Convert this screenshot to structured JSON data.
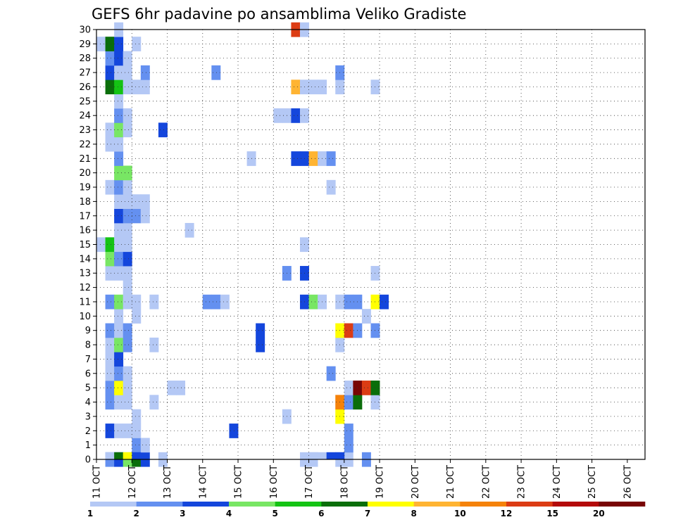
{
  "chart_data": {
    "type": "heatmap",
    "title": "GEFS 6hr padavine po ansamblima Veliko Gradiste",
    "xlabel": "",
    "ylabel": "",
    "x_ticks": [
      "11 OCT",
      "12 OCT",
      "13 OCT",
      "14 OCT",
      "15 OCT",
      "16 OCT",
      "17 OCT",
      "18 OCT",
      "19 OCT",
      "20 OCT",
      "21 OCT",
      "22 OCT",
      "23 OCT",
      "24 OCT",
      "25 OCT",
      "26 OCT"
    ],
    "y_ticks": [
      "0",
      "1",
      "2",
      "3",
      "4",
      "5",
      "6",
      "7",
      "8",
      "9",
      "10",
      "11",
      "12",
      "13",
      "14",
      "15",
      "16",
      "17",
      "18",
      "19",
      "20",
      "21",
      "22",
      "23",
      "24",
      "25",
      "26",
      "27",
      "28",
      "29",
      "30"
    ],
    "xlim": [
      0,
      62
    ],
    "ylim": [
      0,
      30
    ],
    "grid": true,
    "colorbar": {
      "levels": [
        "1",
        "2",
        "3",
        "4",
        "5",
        "6",
        "7",
        "8",
        "10",
        "12",
        "15",
        "20"
      ],
      "colors": [
        "#b4c8f5",
        "#6490f0",
        "#1446dc",
        "#78e664",
        "#14c314",
        "#0a6e0a",
        "#ffff00",
        "#ffb432",
        "#f5820a",
        "#dc3c14",
        "#b40a0a",
        "#780505"
      ]
    },
    "cells": [
      [
        0,
        1,
        2
      ],
      [
        0,
        2,
        3
      ],
      [
        0,
        3,
        4
      ],
      [
        0,
        4,
        6
      ],
      [
        0,
        5,
        3
      ],
      [
        0,
        7,
        1
      ],
      [
        0,
        23,
        1
      ],
      [
        0,
        24,
        1
      ],
      [
        0,
        27,
        1
      ],
      [
        0,
        28,
        1
      ],
      [
        0,
        30,
        2
      ],
      [
        1,
        4,
        2
      ],
      [
        1,
        5,
        1
      ],
      [
        1,
        28,
        2
      ],
      [
        2,
        1,
        3
      ],
      [
        2,
        2,
        1
      ],
      [
        2,
        3,
        1
      ],
      [
        2,
        4,
        1
      ],
      [
        2,
        15,
        3
      ],
      [
        2,
        28,
        2
      ],
      [
        3,
        4,
        1
      ],
      [
        3,
        21,
        1
      ],
      [
        3,
        27,
        7
      ],
      [
        4,
        1,
        2
      ],
      [
        4,
        2,
        1
      ],
      [
        4,
        3,
        1
      ],
      [
        4,
        6,
        1
      ],
      [
        4,
        27,
        9
      ],
      [
        4,
        28,
        2
      ],
      [
        4,
        29,
        6
      ],
      [
        4,
        31,
        1
      ],
      [
        5,
        1,
        2
      ],
      [
        5,
        2,
        7
      ],
      [
        5,
        3,
        1
      ],
      [
        5,
        8,
        1
      ],
      [
        5,
        9,
        1
      ],
      [
        5,
        28,
        1
      ],
      [
        5,
        29,
        12
      ],
      [
        5,
        30,
        10
      ],
      [
        5,
        31,
        6
      ],
      [
        6,
        1,
        1
      ],
      [
        6,
        2,
        2
      ],
      [
        6,
        3,
        1
      ],
      [
        6,
        26,
        2
      ],
      [
        7,
        1,
        1
      ],
      [
        7,
        2,
        3
      ],
      [
        8,
        1,
        1
      ],
      [
        8,
        2,
        4
      ],
      [
        8,
        3,
        2
      ],
      [
        8,
        6,
        1
      ],
      [
        8,
        18,
        3
      ],
      [
        8,
        27,
        1
      ],
      [
        9,
        1,
        2
      ],
      [
        9,
        2,
        1
      ],
      [
        9,
        3,
        2
      ],
      [
        9,
        18,
        3
      ],
      [
        9,
        27,
        7
      ],
      [
        9,
        28,
        10
      ],
      [
        9,
        29,
        2
      ],
      [
        9,
        31,
        2
      ],
      [
        10,
        2,
        1
      ],
      [
        10,
        4,
        1
      ],
      [
        10,
        30,
        1
      ],
      [
        11,
        1,
        2
      ],
      [
        11,
        2,
        4
      ],
      [
        11,
        3,
        1
      ],
      [
        11,
        4,
        1
      ],
      [
        11,
        6,
        1
      ],
      [
        11,
        12,
        2
      ],
      [
        11,
        13,
        2
      ],
      [
        11,
        14,
        1
      ],
      [
        11,
        23,
        3
      ],
      [
        11,
        24,
        4
      ],
      [
        11,
        25,
        1
      ],
      [
        11,
        27,
        1
      ],
      [
        11,
        28,
        2
      ],
      [
        11,
        29,
        2
      ],
      [
        11,
        31,
        7
      ],
      [
        11,
        32,
        3
      ],
      [
        12,
        3,
        1
      ],
      [
        13,
        1,
        1
      ],
      [
        13,
        2,
        1
      ],
      [
        13,
        3,
        1
      ],
      [
        13,
        21,
        2
      ],
      [
        13,
        23,
        3
      ],
      [
        13,
        31,
        1
      ],
      [
        14,
        1,
        4
      ],
      [
        14,
        2,
        2
      ],
      [
        14,
        3,
        3
      ],
      [
        15,
        0,
        1
      ],
      [
        15,
        1,
        5
      ],
      [
        15,
        2,
        1
      ],
      [
        15,
        3,
        1
      ],
      [
        15,
        23,
        1
      ],
      [
        16,
        2,
        1
      ],
      [
        16,
        3,
        1
      ],
      [
        16,
        10,
        1
      ],
      [
        17,
        2,
        3
      ],
      [
        17,
        3,
        2
      ],
      [
        17,
        4,
        2
      ],
      [
        17,
        5,
        1
      ],
      [
        18,
        2,
        1
      ],
      [
        18,
        3,
        1
      ],
      [
        18,
        4,
        1
      ],
      [
        18,
        5,
        1
      ],
      [
        19,
        1,
        1
      ],
      [
        19,
        2,
        2
      ],
      [
        19,
        3,
        1
      ],
      [
        19,
        26,
        1
      ],
      [
        20,
        2,
        4
      ],
      [
        20,
        3,
        4
      ],
      [
        21,
        2,
        2
      ],
      [
        21,
        17,
        1
      ],
      [
        21,
        22,
        3
      ],
      [
        21,
        23,
        3
      ],
      [
        21,
        24,
        8
      ],
      [
        21,
        25,
        1
      ],
      [
        21,
        26,
        2
      ],
      [
        22,
        1,
        1
      ],
      [
        22,
        2,
        1
      ],
      [
        23,
        1,
        1
      ],
      [
        23,
        2,
        4
      ],
      [
        23,
        3,
        1
      ],
      [
        23,
        7,
        3
      ],
      [
        24,
        2,
        2
      ],
      [
        24,
        3,
        1
      ],
      [
        24,
        20,
        1
      ],
      [
        24,
        21,
        1
      ],
      [
        24,
        22,
        3
      ],
      [
        24,
        23,
        1
      ],
      [
        25,
        2,
        1
      ],
      [
        26,
        1,
        6
      ],
      [
        26,
        2,
        5
      ],
      [
        26,
        3,
        1
      ],
      [
        26,
        4,
        1
      ],
      [
        26,
        5,
        1
      ],
      [
        26,
        22,
        8
      ],
      [
        26,
        23,
        1
      ],
      [
        26,
        24,
        1
      ],
      [
        26,
        25,
        1
      ],
      [
        26,
        27,
        1
      ],
      [
        26,
        31,
        1
      ],
      [
        27,
        1,
        3
      ],
      [
        27,
        2,
        1
      ],
      [
        27,
        3,
        1
      ],
      [
        27,
        5,
        2
      ],
      [
        27,
        13,
        2
      ],
      [
        27,
        27,
        2
      ],
      [
        28,
        1,
        2
      ],
      [
        28,
        2,
        3
      ],
      [
        28,
        3,
        1
      ],
      [
        29,
        0,
        1
      ],
      [
        29,
        1,
        6
      ],
      [
        29,
        2,
        3
      ],
      [
        29,
        4,
        1
      ],
      [
        30,
        2,
        1
      ],
      [
        30,
        22,
        10
      ],
      [
        30,
        23,
        1
      ]
    ],
    "bottom_cells": [
      [
        1,
        1
      ],
      [
        2,
        6
      ],
      [
        3,
        7
      ],
      [
        4,
        3
      ],
      [
        24,
        1
      ],
      [
        25,
        1
      ],
      [
        26,
        3
      ],
      [
        27,
        3
      ]
    ]
  }
}
